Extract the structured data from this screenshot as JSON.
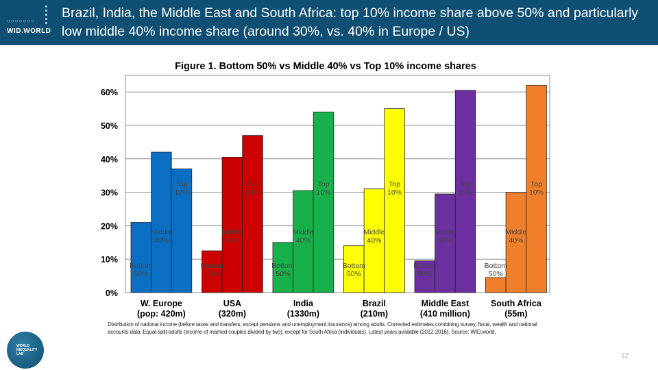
{
  "header": {
    "logo_text": "WID.WORLD",
    "title": "Brazil, India, the Middle East and South Africa: top 10% income share above 50% and particularly low middle 40%  income share (around 30%, vs. 40% in Europe / US)"
  },
  "footer": {
    "lab_logo_text": "WORLD INEQUALITY LAB",
    "page_number": "12"
  },
  "colors": {
    "header_bg": "#0f4f73",
    "W. Europe": "#0a6fc2",
    "USA": "#cc0000",
    "India": "#18b04a",
    "Brazil": "#ffff00",
    "Middle East": "#6b2fa0",
    "South Africa": "#ef7f2a"
  },
  "chart_data": {
    "type": "bar",
    "title": "Figure 1. Bottom 50% vs Middle 40% vs Top 10% income shares",
    "ylim": [
      0,
      0.62
    ],
    "yticks": [
      "0%",
      "10%",
      "20%",
      "30%",
      "40%",
      "50%",
      "60%"
    ],
    "grid": true,
    "series_names": [
      "Bottom 50%",
      "Middle 40%",
      "Top 10%"
    ],
    "groups": [
      {
        "label": [
          "W. Europe",
          "(pop: 420m)"
        ],
        "bar_labels": [
          [
            "Bottom",
            "50%"
          ],
          [
            "Middle",
            "40%"
          ],
          [
            "Top",
            "10%"
          ]
        ],
        "values": [
          0.21,
          0.42,
          0.37
        ]
      },
      {
        "label": [
          "USA",
          "(320m)"
        ],
        "bar_labels": [
          [
            "Bottom",
            "50%"
          ],
          [
            "Middle",
            "40%"
          ],
          [
            "Top",
            "10%"
          ]
        ],
        "values": [
          0.125,
          0.405,
          0.47
        ]
      },
      {
        "label": [
          "India",
          "(1330m)"
        ],
        "bar_labels": [
          [
            "Bottom",
            "50%"
          ],
          [
            "Middle",
            "40%"
          ],
          [
            "Top",
            "10%"
          ]
        ],
        "values": [
          0.15,
          0.305,
          0.54
        ]
      },
      {
        "label": [
          "Brazil",
          "(210m)"
        ],
        "bar_labels": [
          [
            "Bottom",
            "50%"
          ],
          [
            "Middle",
            "40%"
          ],
          [
            "Top",
            "10%"
          ]
        ],
        "values": [
          0.14,
          0.31,
          0.55
        ]
      },
      {
        "label": [
          "Middle East",
          "(410 million)"
        ],
        "bar_labels": [
          [
            "Bottom",
            "50%"
          ],
          [
            "Middle",
            "40%"
          ],
          [
            "Top",
            "10%"
          ]
        ],
        "values": [
          0.095,
          0.295,
          0.605
        ]
      },
      {
        "label": [
          "South Africa",
          "(55m)"
        ],
        "bar_labels": [
          [
            "Bottom",
            "50%"
          ],
          [
            "Middle",
            "40%"
          ],
          [
            "Top",
            "10%"
          ]
        ],
        "values": [
          0.045,
          0.3,
          0.62
        ]
      }
    ],
    "note": "Distribution of national income (before taxes and transfers, except pensions and unemployment insurance) among adults. Corrected estimates combining survey, fiscal, wealth and national accounts data. Equal-split-adults (income of married couples divided by two), except for South Africa (individuals). Latest years available (2012-2016). Source: WID.world."
  }
}
